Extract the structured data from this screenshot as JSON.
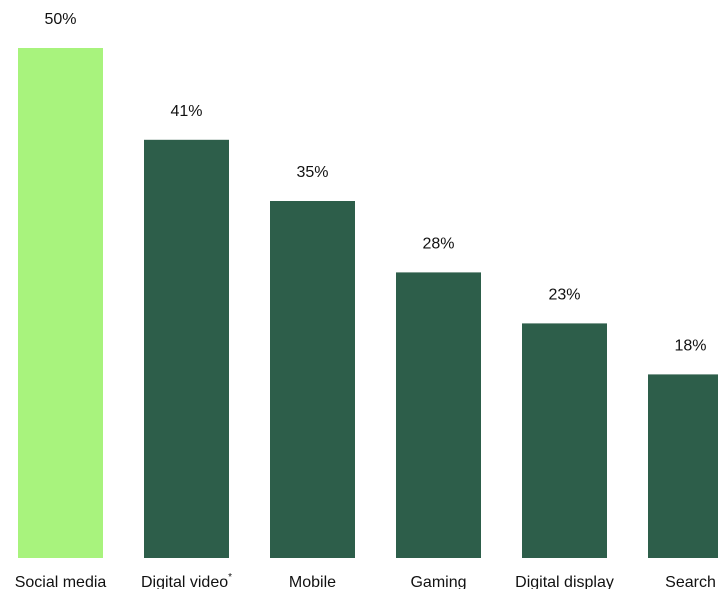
{
  "chart_data": {
    "type": "bar",
    "categories": [
      "Social media",
      "Digital video",
      "Mobile",
      "Gaming",
      "Digital display",
      "Search"
    ],
    "category_superscripts": [
      "",
      "*",
      "",
      "",
      "",
      ""
    ],
    "values": [
      50,
      41,
      35,
      28,
      23,
      18
    ],
    "data_labels": [
      "50%",
      "41%",
      "35%",
      "28%",
      "23%",
      "18%"
    ],
    "highlight_index": 0,
    "colors": {
      "highlight": "#a8f37d",
      "default": "#2d5e4a",
      "text": "#111111"
    },
    "title": "",
    "xlabel": "",
    "ylabel": "",
    "ylim": [
      0,
      50
    ],
    "grid": false,
    "legend": "none"
  }
}
